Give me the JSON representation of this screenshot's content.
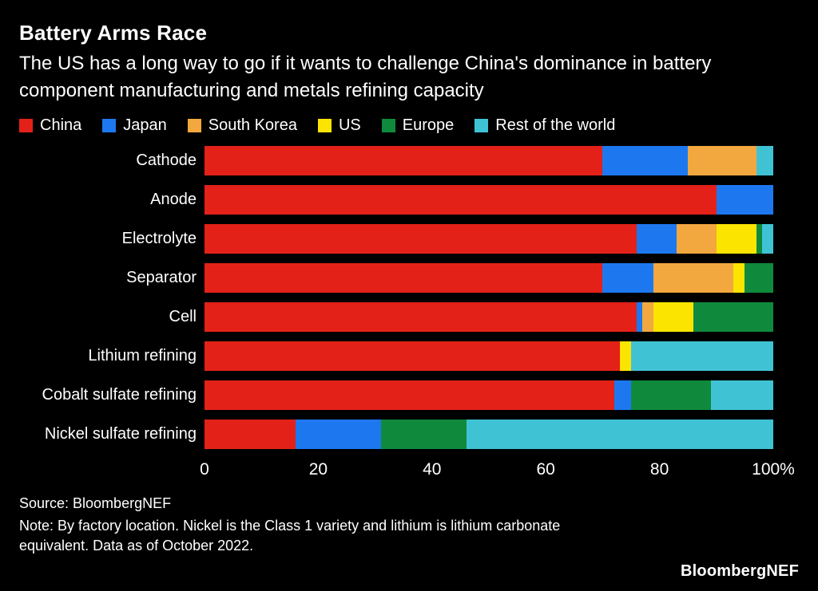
{
  "chart_data": {
    "type": "bar",
    "orientation": "horizontal",
    "stacked": true,
    "title": "Battery Arms Race",
    "subtitle": "The US has a long way to go if it wants to challenge China's dominance in battery component manufacturing and metals refining capacity",
    "categories": [
      "Cathode",
      "Anode",
      "Electrolyte",
      "Separator",
      "Cell",
      "Lithium refining",
      "Cobalt sulfate refining",
      "Nickel sulfate refining"
    ],
    "series": [
      {
        "name": "China",
        "color": "#e32119",
        "values": [
          70,
          90,
          76,
          70,
          76,
          73,
          72,
          16
        ]
      },
      {
        "name": "Japan",
        "color": "#1d78f0",
        "values": [
          15,
          10,
          7,
          9,
          1,
          0,
          3,
          15
        ]
      },
      {
        "name": "South Korea",
        "color": "#f3a73f",
        "values": [
          12,
          0,
          7,
          14,
          2,
          0,
          0,
          0
        ]
      },
      {
        "name": "US",
        "color": "#fbe500",
        "values": [
          0,
          0,
          7,
          2,
          7,
          2,
          0,
          0
        ]
      },
      {
        "name": "Europe",
        "color": "#0f8a3d",
        "values": [
          0,
          0,
          1,
          5,
          14,
          0,
          14,
          15
        ]
      },
      {
        "name": "Rest of the world",
        "color": "#3fc3d4",
        "values": [
          3,
          0,
          2,
          0,
          0,
          25,
          11,
          54
        ]
      }
    ],
    "xlim": [
      0,
      100
    ],
    "x_tick_values": [
      0,
      20,
      40,
      60,
      80,
      100
    ],
    "x_tick_labels": [
      "0",
      "20",
      "40",
      "60",
      "80",
      "100%"
    ],
    "legend_position": "top",
    "grid": false,
    "source": "Source: BloombergNEF",
    "note": "Note: By factory location. Nickel is the Class 1 variety and lithium is lithium carbonate equivalent. Data as of October 2022.",
    "brand": "BloombergNEF"
  }
}
